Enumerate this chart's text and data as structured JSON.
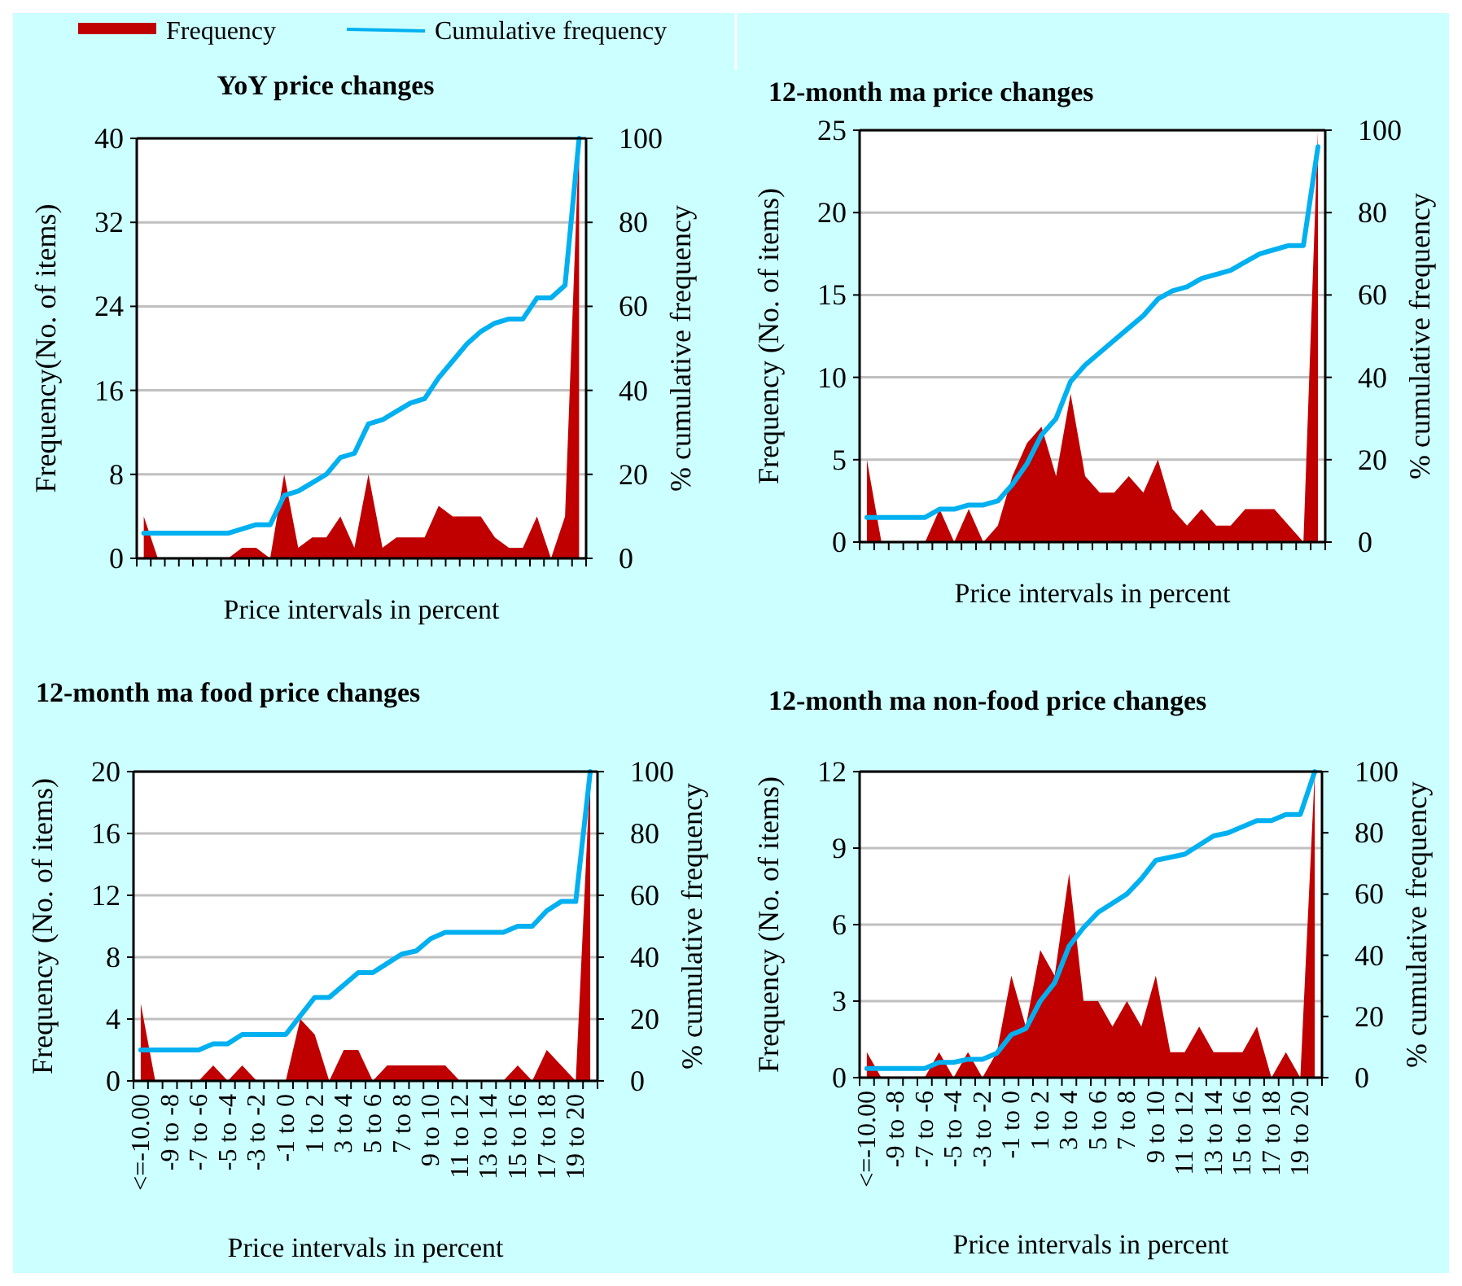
{
  "chart_data": [
    {
      "type": "area",
      "title": "YoY price changes",
      "xlabel": "Price intervals in percent",
      "ylabel": "Frequency(No. of items)",
      "y2label": "% cumulative frequency",
      "categories": [
        null,
        null,
        null,
        null,
        null,
        null,
        null,
        null,
        null,
        null,
        null,
        null,
        null,
        null,
        null,
        null,
        null,
        null,
        null,
        null,
        null,
        null,
        null,
        null,
        null,
        null,
        null,
        null,
        null,
        null,
        null,
        null
      ],
      "ylim": [
        0,
        40
      ],
      "yticks": [
        0,
        8,
        16,
        24,
        32,
        40
      ],
      "y2lim": [
        0,
        100
      ],
      "y2ticks": [
        0,
        20,
        40,
        60,
        80,
        100
      ],
      "grid": "y",
      "legend": "top left",
      "tick_labels": "y",
      "series": [
        {
          "name": "Frequency",
          "color": "#c00000",
          "values": [
            4,
            0,
            0,
            0,
            0,
            0,
            0,
            1,
            1,
            0,
            8,
            1,
            2,
            2,
            4,
            1,
            8,
            1,
            2,
            2,
            2,
            5,
            4,
            4,
            4,
            2,
            1,
            1,
            4,
            0,
            4,
            40
          ]
        },
        {
          "name": "Cumulative frequency",
          "type": "line",
          "axis": "y2",
          "color": "#00b0f0",
          "values": [
            6,
            6,
            6,
            6,
            6,
            6,
            6,
            7,
            8,
            8,
            15,
            16,
            18,
            20,
            24,
            25,
            32,
            33,
            35,
            37,
            38,
            43,
            47,
            51,
            54,
            56,
            57,
            57,
            62,
            62,
            65,
            100
          ]
        }
      ]
    },
    {
      "type": "area",
      "title": "12-month ma price changes",
      "xlabel": "Price intervals in percent",
      "ylabel": "Frequency (No. of items)",
      "y2label": "% cumulative frequency",
      "categories": [
        null,
        null,
        null,
        null,
        null,
        null,
        null,
        null,
        null,
        null,
        null,
        null,
        null,
        null,
        null,
        null,
        null,
        null,
        null,
        null,
        null,
        null,
        null,
        null,
        null,
        null,
        null,
        null,
        null,
        null,
        null,
        null
      ],
      "ylim": [
        0,
        25
      ],
      "yticks": [
        0,
        5,
        10,
        15,
        20,
        25
      ],
      "y2lim": [
        0,
        100
      ],
      "y2ticks": [
        0,
        20,
        40,
        60,
        80,
        100
      ],
      "grid": "y",
      "tick_labels": "y",
      "series": [
        {
          "color": "#c00000",
          "values": [
            5,
            0,
            0,
            0,
            0,
            2,
            0,
            2,
            0,
            1,
            4,
            6,
            7,
            4,
            9,
            4,
            3,
            3,
            4,
            3,
            5,
            2,
            1,
            2,
            1,
            1,
            2,
            2,
            2,
            1,
            0,
            25
          ]
        },
        {
          "type": "line",
          "axis": "y2",
          "color": "#00b0f0",
          "values": [
            6,
            6,
            6,
            6,
            6,
            8,
            8,
            9,
            9,
            10,
            14,
            19,
            26,
            30,
            39,
            43,
            46,
            49,
            52,
            55,
            59,
            61,
            62,
            64,
            65,
            66,
            68,
            70,
            71,
            72,
            72,
            96
          ]
        }
      ]
    },
    {
      "type": "area",
      "title": "12-month ma food price changes",
      "xlabel": "Price intervals in percent",
      "ylabel": "Frequency (No. of items)",
      "y2label": "% cumulative frequency",
      "categories": [
        "<=-10.00",
        null,
        "-9 to -8",
        null,
        "-7 to -6",
        null,
        "-5 to -4",
        null,
        "-3 to -2",
        null,
        "-1 to 0",
        null,
        "1 to 2",
        null,
        "3 to 4",
        null,
        "5 to 6",
        null,
        "7 to 8",
        null,
        "9 to 10",
        null,
        "11 to 12",
        null,
        "13 to 14",
        null,
        "15 to 16",
        null,
        "17 to 18",
        null,
        "19 to 20",
        null
      ],
      "ylim": [
        0,
        20
      ],
      "yticks": [
        0,
        4,
        8,
        12,
        16,
        20
      ],
      "y2lim": [
        0,
        100
      ],
      "y2ticks": [
        0,
        20,
        40,
        60,
        80,
        100
      ],
      "grid": "y",
      "series": [
        {
          "color": "#c00000",
          "values": [
            5,
            0,
            0,
            0,
            0,
            1,
            0,
            1,
            0,
            0,
            0,
            4,
            3,
            0,
            2,
            2,
            0,
            1,
            1,
            1,
            1,
            1,
            0,
            0,
            0,
            0,
            1,
            0,
            2,
            1,
            0,
            20
          ]
        },
        {
          "type": "line",
          "axis": "y2",
          "color": "#00b0f0",
          "values": [
            10,
            10,
            10,
            10,
            10,
            12,
            12,
            15,
            15,
            15,
            15,
            21,
            27,
            27,
            31,
            35,
            35,
            38,
            41,
            42,
            46,
            48,
            48,
            48,
            48,
            48,
            50,
            50,
            55,
            58,
            58,
            100
          ]
        }
      ]
    },
    {
      "type": "area",
      "title": "12-month ma non-food price changes",
      "xlabel": "Price intervals in percent",
      "ylabel": "Frequency (No. of items)",
      "y2label": "% cumulative frequency",
      "categories": [
        "<=-10.00",
        null,
        "-9 to -8",
        null,
        "-7 to -6",
        null,
        "-5 to -4",
        null,
        "-3 to -2",
        null,
        "-1 to 0",
        null,
        "1 to 2",
        null,
        "3 to 4",
        null,
        "5 to 6",
        null,
        "7 to 8",
        null,
        "9 to 10",
        null,
        "11 to 12",
        null,
        "13 to 14",
        null,
        "15 to 16",
        null,
        "17 to 18",
        null,
        "19 to 20",
        null
      ],
      "ylim": [
        0,
        12
      ],
      "yticks": [
        0,
        3,
        6,
        9,
        12
      ],
      "y2lim": [
        0,
        100
      ],
      "y2ticks": [
        0,
        20,
        40,
        60,
        80,
        100
      ],
      "grid": "y",
      "series": [
        {
          "color": "#c00000",
          "values": [
            1,
            0,
            0,
            0,
            0,
            1,
            0,
            1,
            0,
            1,
            4,
            2,
            5,
            4,
            8,
            3,
            3,
            2,
            3,
            2,
            4,
            1,
            1,
            2,
            1,
            1,
            1,
            2,
            0,
            1,
            0,
            12
          ]
        },
        {
          "type": "line",
          "axis": "y2",
          "color": "#00b0f0",
          "values": [
            3,
            3,
            3,
            3,
            3,
            5,
            5,
            6,
            6,
            8,
            14,
            16,
            25,
            31,
            43,
            49,
            54,
            57,
            60,
            65,
            71,
            72,
            73,
            76,
            79,
            80,
            82,
            84,
            84,
            86,
            86,
            100
          ]
        }
      ]
    }
  ]
}
